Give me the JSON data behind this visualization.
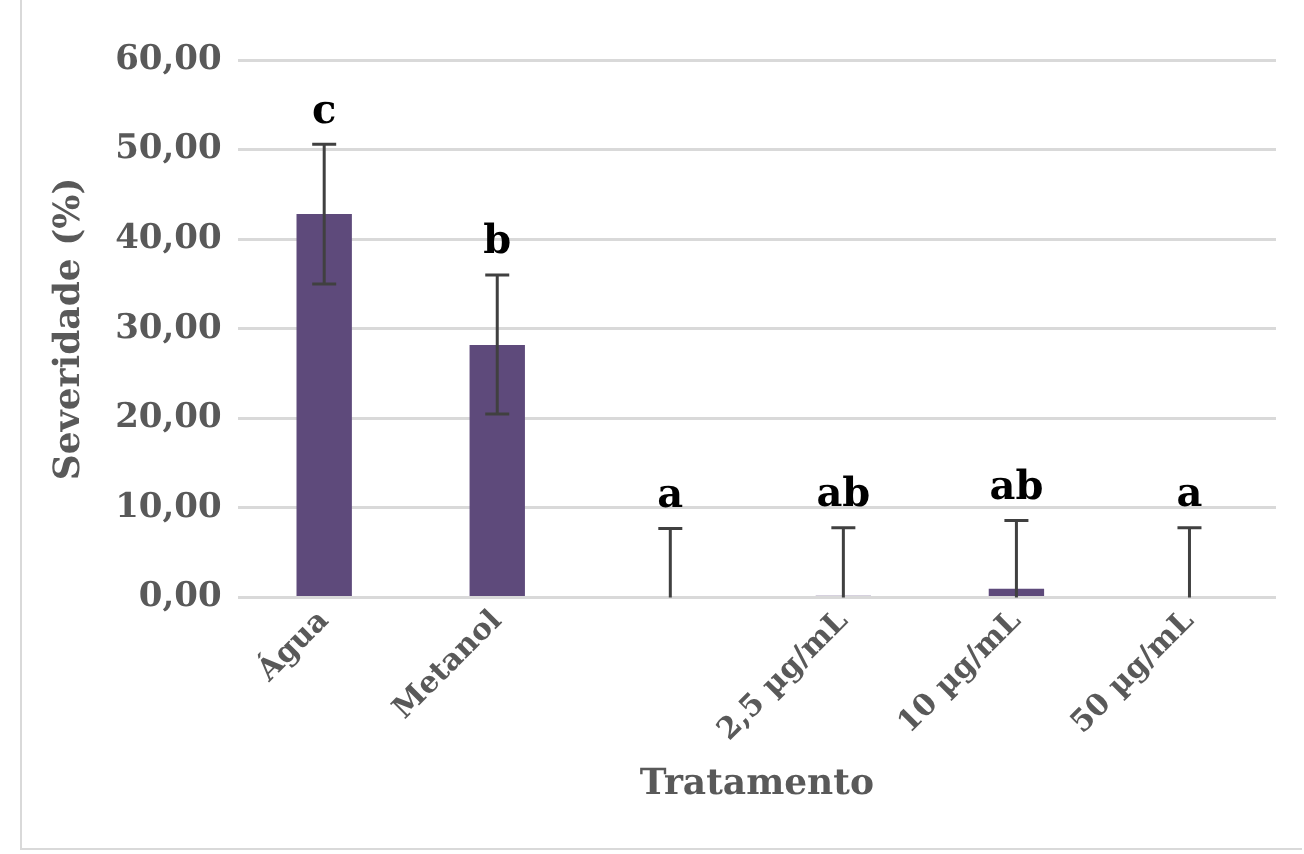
{
  "chart_data": {
    "type": "bar",
    "xlabel": "Tratamento",
    "ylabel": "Severidade (%)",
    "categories": [
      "Água",
      "Metanol",
      null,
      "2,5 µg/mL",
      "10 µg/mL",
      "50 µg/mL"
    ],
    "values": [
      42.8,
      28.2,
      0,
      0.2,
      1.0,
      0
    ],
    "errors": [
      [
        35.0,
        50.6
      ],
      [
        20.5,
        36.0
      ],
      [
        0,
        7.7
      ],
      [
        0,
        7.8
      ],
      [
        0,
        8.6
      ],
      [
        0,
        7.8
      ]
    ],
    "value_labels": [
      "c",
      "b",
      "a",
      "ab",
      "ab",
      "a"
    ],
    "color": "#5e4a7b",
    "ylim": [
      0,
      60
    ],
    "yticks": [
      {
        "value": 0,
        "label": "0,00"
      },
      {
        "value": 10,
        "label": "10,00"
      },
      {
        "value": 20,
        "label": "20,00"
      },
      {
        "value": 30,
        "label": "30,00"
      },
      {
        "value": 40,
        "label": "40,00"
      },
      {
        "value": 50,
        "label": "50,00"
      },
      {
        "value": 60,
        "label": "60,00"
      }
    ],
    "grid": "y",
    "legend": false
  }
}
